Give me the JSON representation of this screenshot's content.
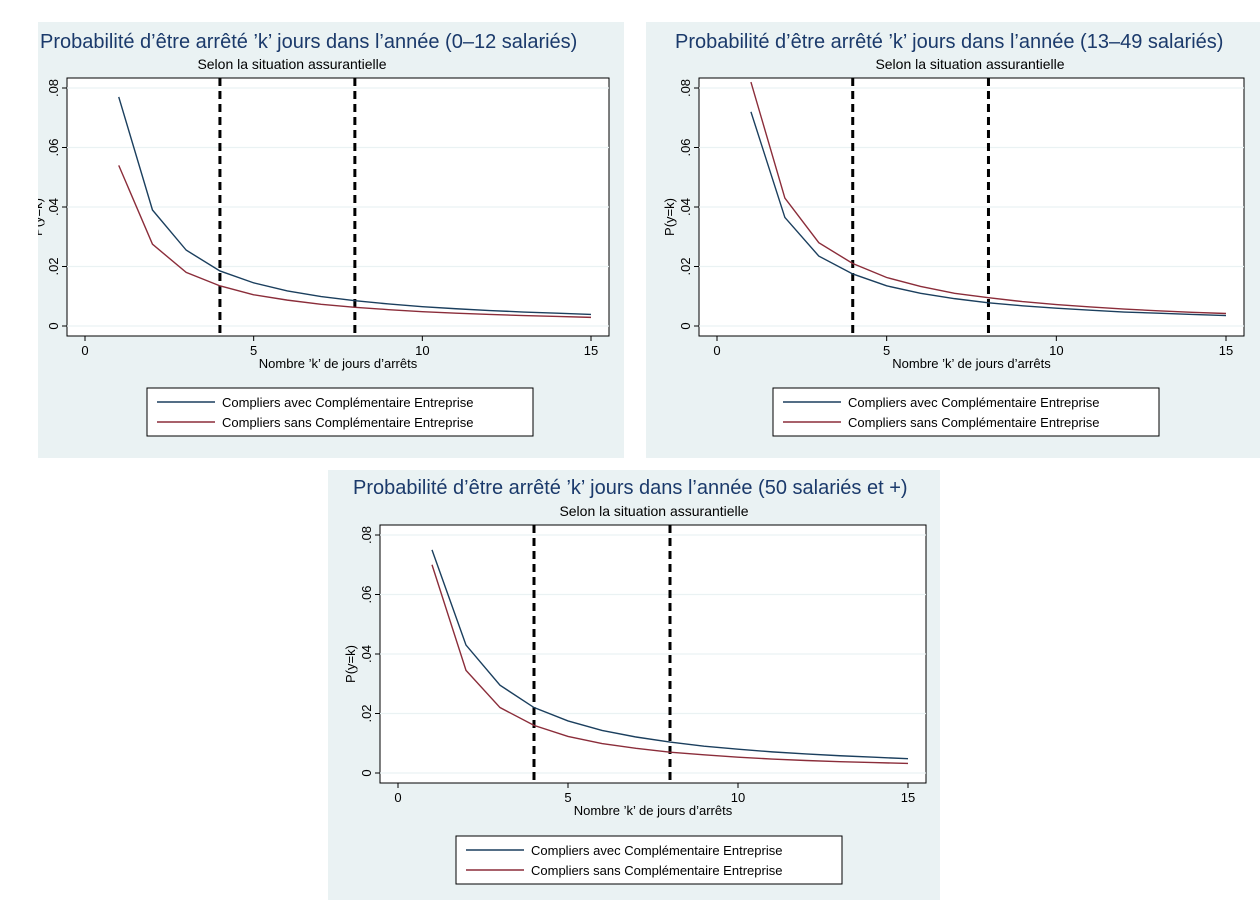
{
  "colors": {
    "background": "#eaf2f3",
    "title": "#1b3a6b",
    "series_avec": "#1b3f5e",
    "series_sans": "#8b2d3a"
  },
  "chart_data": [
    {
      "type": "line",
      "title": "Probabilité d’être arrêté ’k’ jours dans l’année (0–12 salariés)",
      "subtitle": "Selon la situation assurantielle",
      "xlabel": "Nombre ’k’ de jours d’arrêts",
      "ylabel": "P(y=k)",
      "xlim": [
        0,
        15
      ],
      "ylim": [
        0,
        0.08
      ],
      "xticks": [
        "0",
        "5",
        "10",
        "15"
      ],
      "yticks": [
        "0",
        ".02",
        ".04",
        ".06",
        ".08"
      ],
      "vlines": [
        4,
        8
      ],
      "grid": true,
      "legend": "bottom",
      "x": [
        1,
        2,
        3,
        4,
        5,
        6,
        7,
        8,
        9,
        10,
        11,
        12,
        13,
        14,
        15
      ],
      "series": [
        {
          "name": "Compliers avec Complémentaire Entreprise",
          "values": [
            0.077,
            0.039,
            0.0255,
            0.0185,
            0.0145,
            0.0118,
            0.0099,
            0.0085,
            0.0074,
            0.0065,
            0.0058,
            0.0052,
            0.0047,
            0.0043,
            0.0039
          ]
        },
        {
          "name": "Compliers sans Complémentaire Entreprise",
          "values": [
            0.054,
            0.0275,
            0.018,
            0.0135,
            0.0105,
            0.0087,
            0.0073,
            0.0063,
            0.0055,
            0.0048,
            0.0043,
            0.0039,
            0.0035,
            0.0032,
            0.0029
          ]
        }
      ]
    },
    {
      "type": "line",
      "title": "Probabilité d’être arrêté ’k’ jours dans l’année (13–49 salariés)",
      "subtitle": "Selon la situation assurantielle",
      "xlabel": "Nombre ’k’ de jours d’arrêts",
      "ylabel": "P(y=k)",
      "xlim": [
        0,
        15
      ],
      "ylim": [
        0,
        0.08
      ],
      "xticks": [
        "0",
        "5",
        "10",
        "15"
      ],
      "yticks": [
        "0",
        ".02",
        ".04",
        ".06",
        ".08"
      ],
      "vlines": [
        4,
        8
      ],
      "grid": true,
      "legend": "bottom",
      "x": [
        1,
        2,
        3,
        4,
        5,
        6,
        7,
        8,
        9,
        10,
        11,
        12,
        13,
        14,
        15
      ],
      "series": [
        {
          "name": "Compliers avec Complémentaire Entreprise",
          "values": [
            0.072,
            0.0365,
            0.0235,
            0.0175,
            0.0135,
            0.011,
            0.0092,
            0.0078,
            0.0068,
            0.006,
            0.0053,
            0.0047,
            0.0043,
            0.0039,
            0.0035
          ]
        },
        {
          "name": "Compliers sans Complémentaire Entreprise",
          "values": [
            0.082,
            0.043,
            0.028,
            0.021,
            0.0163,
            0.0133,
            0.011,
            0.0095,
            0.0082,
            0.0072,
            0.0064,
            0.0057,
            0.0051,
            0.0046,
            0.0042
          ]
        }
      ]
    },
    {
      "type": "line",
      "title": "Probabilité d’être arrêté ’k’ jours dans l’année (50 salariés et +)",
      "subtitle": "Selon la situation assurantielle",
      "xlabel": "Nombre ’k’ de jours d’arrêts",
      "ylabel": "P(y=k)",
      "xlim": [
        0,
        15
      ],
      "ylim": [
        0,
        0.08
      ],
      "xticks": [
        "0",
        "5",
        "10",
        "15"
      ],
      "yticks": [
        "0",
        ".02",
        ".04",
        ".06",
        ".08"
      ],
      "vlines": [
        4,
        8
      ],
      "grid": true,
      "legend": "bottom",
      "x": [
        1,
        2,
        3,
        4,
        5,
        6,
        7,
        8,
        9,
        10,
        11,
        12,
        13,
        14,
        15
      ],
      "series": [
        {
          "name": "Compliers avec Complémentaire Entreprise",
          "values": [
            0.075,
            0.043,
            0.0295,
            0.022,
            0.0175,
            0.0143,
            0.0121,
            0.0104,
            0.009,
            0.008,
            0.0071,
            0.0064,
            0.0058,
            0.0053,
            0.0048
          ]
        },
        {
          "name": "Compliers sans Complémentaire Entreprise",
          "values": [
            0.07,
            0.0345,
            0.022,
            0.016,
            0.0123,
            0.0099,
            0.0083,
            0.007,
            0.0061,
            0.0053,
            0.0047,
            0.0042,
            0.0038,
            0.0035,
            0.0032
          ]
        }
      ]
    }
  ]
}
